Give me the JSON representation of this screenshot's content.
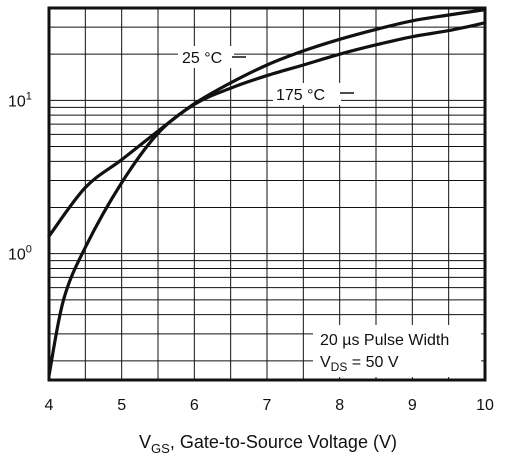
{
  "chart_data": {
    "type": "line",
    "xlabel_main": "V",
    "xlabel_sub": "GS",
    "xlabel_rest": ", Gate-to-Source Voltage (V)",
    "ylabel": "",
    "xlim": [
      4,
      10
    ],
    "ylim": [
      0.15,
      40
    ],
    "y_scale": "log",
    "grid": true,
    "x_ticks": [
      "4",
      "5",
      "6",
      "7",
      "8",
      "9",
      "10"
    ],
    "y_ticks": [
      {
        "base": "10",
        "exp": "0",
        "value": 1
      },
      {
        "base": "10",
        "exp": "1",
        "value": 10
      }
    ],
    "series": [
      {
        "name": "25 °C",
        "x": [
          4,
          4.5,
          5,
          5.5,
          6,
          6.5,
          7,
          7.5,
          8,
          8.5,
          9,
          9.5,
          10
        ],
        "y": [
          1.3,
          2.7,
          4.1,
          6.3,
          9.5,
          13,
          17,
          21,
          25,
          29,
          33,
          36,
          39
        ]
      },
      {
        "name": "175 °C",
        "x": [
          4,
          4.2,
          4.5,
          5,
          5.5,
          6,
          6.5,
          7,
          7.5,
          8,
          8.5,
          9,
          9.5,
          10
        ],
        "y": [
          0.16,
          0.5,
          1.1,
          2.9,
          6.1,
          9.4,
          12,
          14.5,
          17,
          20,
          23,
          26,
          28.5,
          32
        ]
      }
    ],
    "annotations": {
      "pulse": "20 µs Pulse Width",
      "vds_main": "V",
      "vds_sub": "DS",
      "vds_rest": " = 50 V"
    },
    "colors": {
      "line": "#111111",
      "grid": "#111111",
      "background": "#ffffff"
    }
  }
}
